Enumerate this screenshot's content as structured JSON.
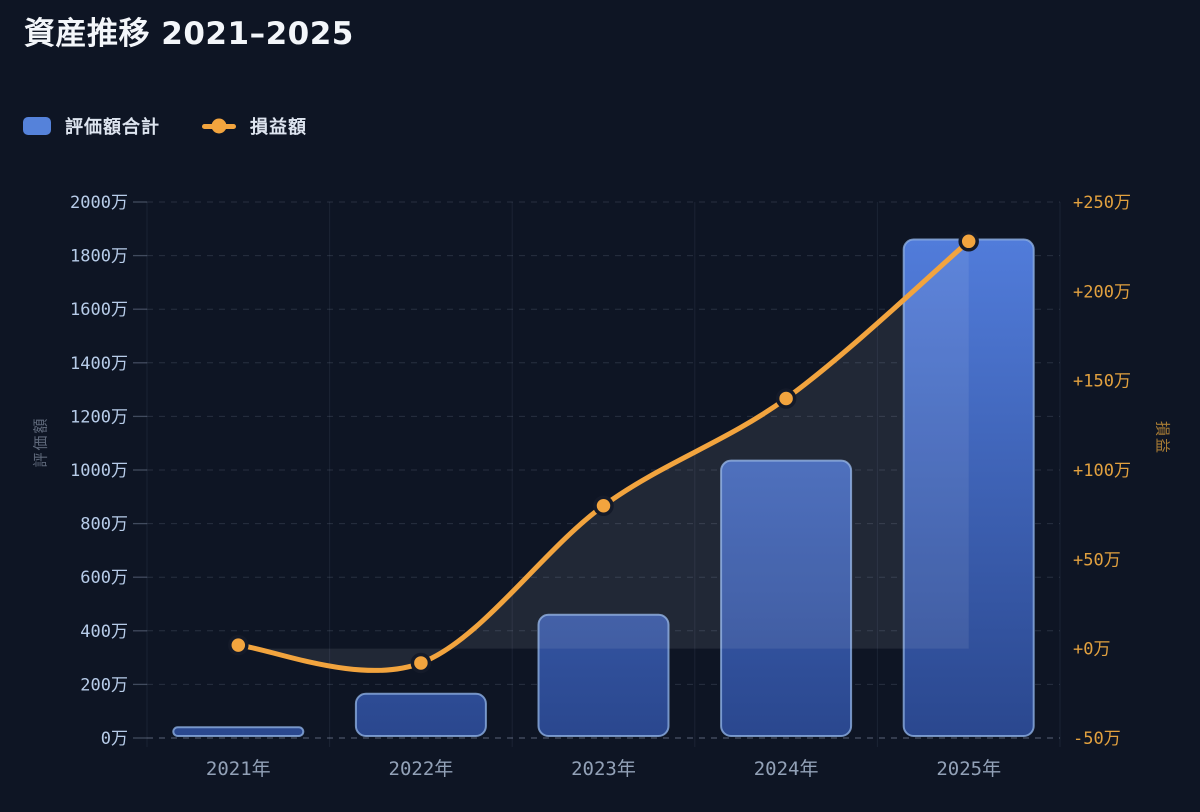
{
  "title": "資産推移 2021–2025",
  "legend": [
    {
      "label": "評価額合計",
      "type": "bar",
      "color": "#5582da"
    },
    {
      "label": "損益額",
      "type": "line",
      "color": "#f2a43e"
    }
  ],
  "chart_data": {
    "type": "bar+line",
    "categories": [
      "2021年",
      "2022年",
      "2023年",
      "2024年",
      "2025年"
    ],
    "series": [
      {
        "name": "評価額合計",
        "type": "bar",
        "axis": "left",
        "values": [
          40,
          165,
          460,
          1035,
          1860
        ]
      },
      {
        "name": "損益額",
        "type": "line",
        "axis": "right",
        "values": [
          2,
          -8,
          80,
          140,
          228
        ]
      }
    ],
    "left_axis": {
      "title": "評価額",
      "min": 0,
      "max": 2000,
      "step": 200,
      "suffix": "万",
      "tick_labels": [
        "0万",
        "200万",
        "400万",
        "600万",
        "800万",
        "1000万",
        "1200万",
        "1400万",
        "1600万",
        "1800万",
        "2000万"
      ]
    },
    "right_axis": {
      "title": "損益",
      "min": -50,
      "max": 250,
      "step": 50,
      "suffix": "万",
      "signed": true,
      "tick_labels": [
        "-50万",
        "+0万",
        "+50万",
        "+100万",
        "+150万",
        "+200万",
        "+250万"
      ]
    },
    "grid": {
      "horizontal": "dashed",
      "vertical": "faint solid at category boundaries"
    },
    "legend_position": "top-left",
    "area_fill_under_line": true,
    "area_baseline_right_axis": 0
  },
  "colors": {
    "background": "#0e1524",
    "title_text": "#f3f6fa",
    "legend_text": "#dde4ef",
    "bar_gradient_top": "#5480e0",
    "bar_gradient_bottom": "#2a478e",
    "bar_border": "#8dafe2",
    "line": "#f2a43e",
    "marker_ring": "#141a29",
    "area_fill": "rgba(235,237,241,0.09)",
    "left_tick_label": "#b7cce9",
    "right_tick_label": "#e2a13f",
    "x_tick_label": "#92a1b7",
    "left_axis_title": "#5d6779",
    "right_axis_title": "#a87c35",
    "grid_line": "rgba(146,158,182,0.20)",
    "zero_line": "rgba(152,164,190,0.45)",
    "vertical_grid": "rgba(120,138,170,0.12)",
    "tick_mark": "rgba(150,162,188,0.38)"
  }
}
